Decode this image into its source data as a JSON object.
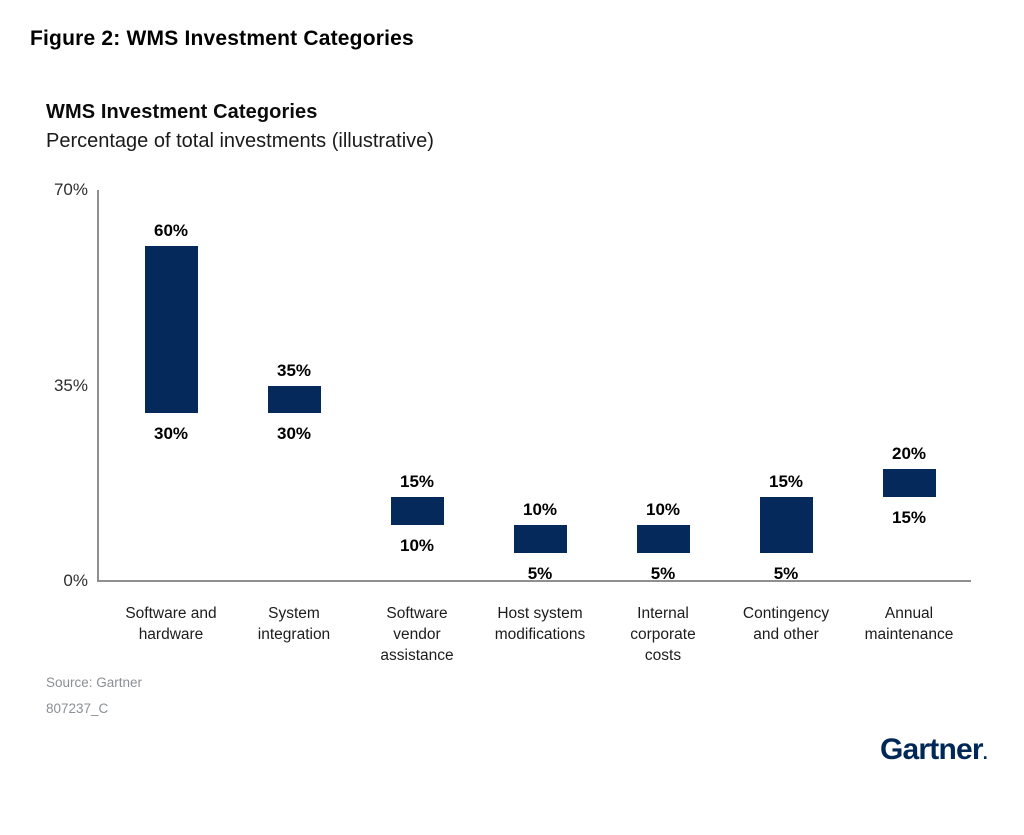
{
  "figure_title": "Figure 2: WMS Investment Categories",
  "chart_data": {
    "type": "bar",
    "subtype": "floating-range-column",
    "title": "WMS Investment Categories",
    "subtitle": "Percentage of total investments (illustrative)",
    "categories": [
      "Software and hardware",
      "System integration",
      "Software vendor assistance",
      "Host system modifications",
      "Internal corporate costs",
      "Contingency and other",
      "Annual maintenance"
    ],
    "label_lines": [
      [
        "Software and",
        "hardware"
      ],
      [
        "System",
        "integration"
      ],
      [
        "Software",
        "vendor",
        "assistance"
      ],
      [
        "Host system",
        "modifications"
      ],
      [
        "Internal",
        "corporate",
        "costs"
      ],
      [
        "Contingency",
        "and other"
      ],
      [
        "Annual",
        "maintenance"
      ]
    ],
    "ranges": [
      [
        30,
        60
      ],
      [
        30,
        35
      ],
      [
        10,
        15
      ],
      [
        5,
        10
      ],
      [
        5,
        10
      ],
      [
        5,
        15
      ],
      [
        15,
        20
      ]
    ],
    "high_labels": [
      "60%",
      "35%",
      "15%",
      "10%",
      "10%",
      "15%",
      "20%"
    ],
    "low_labels": [
      "30%",
      "30%",
      "10%",
      "5%",
      "5%",
      "5%",
      "15%"
    ],
    "ylim": [
      0,
      70
    ],
    "y_ticks": [
      0,
      35,
      70
    ],
    "y_tick_labels": [
      "0%",
      "35%",
      "70%"
    ],
    "bar_color": "#05295a",
    "axis_color": "#8f8f8f",
    "grid": false,
    "legend": false
  },
  "footer": {
    "source": "Source: Gartner",
    "doc_id": "807237_C"
  },
  "logo": {
    "text": "Gartner",
    "mark": ".",
    "color": "#002856"
  }
}
